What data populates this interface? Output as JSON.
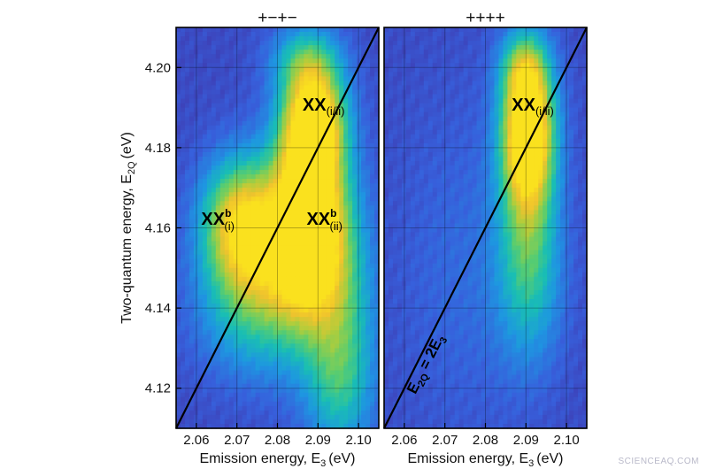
{
  "chart_data": [
    {
      "type": "heatmap",
      "panel_label": "+−+−",
      "xlabel": "Emission energy, E",
      "xlabel_sub": "3",
      "xlabel_unit": "(eV)",
      "ylabel": "Two-quantum energy, E",
      "ylabel_sub": "2Q",
      "ylabel_unit": "(eV)",
      "xlim": [
        2.055,
        2.105
      ],
      "ylim": [
        4.11,
        4.21
      ],
      "x_ticks": [
        "2.06",
        "2.07",
        "2.08",
        "2.09",
        "2.10"
      ],
      "y_ticks": [
        "4.12",
        "4.14",
        "4.16",
        "4.18",
        "4.20"
      ],
      "grid": true,
      "diagonal": {
        "slope": 2,
        "intercept": 0
      },
      "peaks": [
        {
          "x": 2.088,
          "y": 4.164,
          "sx": 0.0058,
          "sy": 0.016,
          "amp": 1.0
        },
        {
          "x": 2.089,
          "y": 4.187,
          "sx": 0.0052,
          "sy": 0.0095,
          "amp": 0.92
        },
        {
          "x": 2.0705,
          "y": 4.161,
          "sx": 0.0065,
          "sy": 0.011,
          "amp": 0.78
        },
        {
          "x": 2.083,
          "y": 4.153,
          "sx": 0.0085,
          "sy": 0.016,
          "amp": 0.55
        },
        {
          "x": 2.072,
          "y": 4.14,
          "sx": 0.009,
          "sy": 0.012,
          "amp": 0.3
        },
        {
          "x": 2.096,
          "y": 4.14,
          "sx": 0.006,
          "sy": 0.02,
          "amp": 0.35
        },
        {
          "x": 2.087,
          "y": 4.202,
          "sx": 0.006,
          "sy": 0.006,
          "amp": 0.35
        },
        {
          "x": 2.095,
          "y": 4.12,
          "sx": 0.006,
          "sy": 0.012,
          "amp": 0.25
        }
      ],
      "annotations": [
        {
          "base": "XX",
          "sub": "(i/ii)",
          "sup": "",
          "x": 2.0862,
          "y": 4.1892
        },
        {
          "base": "XX",
          "sub": "(i)",
          "sup": "b",
          "x": 2.0612,
          "y": 4.1608
        },
        {
          "base": "XX",
          "sub": "(ii)",
          "sup": "b",
          "x": 2.0872,
          "y": 4.1608
        }
      ]
    },
    {
      "type": "heatmap",
      "panel_label": "++++",
      "xlabel": "Emission energy, E",
      "xlabel_sub": "3",
      "xlabel_unit": "(eV)",
      "xlim": [
        2.055,
        2.105
      ],
      "ylim": [
        4.11,
        4.21
      ],
      "x_ticks": [
        "2.06",
        "2.07",
        "2.08",
        "2.09",
        "2.10"
      ],
      "grid": true,
      "diagonal": {
        "slope": 2,
        "intercept": 0,
        "label": "E",
        "label_sub": "2Q",
        "label_rest": " = 2E",
        "label_sub2": "3"
      },
      "peaks": [
        {
          "x": 2.0905,
          "y": 4.185,
          "sx": 0.0042,
          "sy": 0.012,
          "amp": 0.95
        },
        {
          "x": 2.0905,
          "y": 4.17,
          "sx": 0.005,
          "sy": 0.02,
          "amp": 0.45
        },
        {
          "x": 2.0895,
          "y": 4.2,
          "sx": 0.004,
          "sy": 0.006,
          "amp": 0.35
        },
        {
          "x": 2.091,
          "y": 4.145,
          "sx": 0.006,
          "sy": 0.015,
          "amp": 0.22
        },
        {
          "x": 2.075,
          "y": 4.15,
          "sx": 0.012,
          "sy": 0.03,
          "amp": 0.1
        }
      ],
      "annotations": [
        {
          "base": "XX",
          "sub": "(i/ii)",
          "sup": "",
          "x": 2.0865,
          "y": 4.1892
        }
      ]
    }
  ],
  "watermark": "SCIENCEAQ.COM"
}
